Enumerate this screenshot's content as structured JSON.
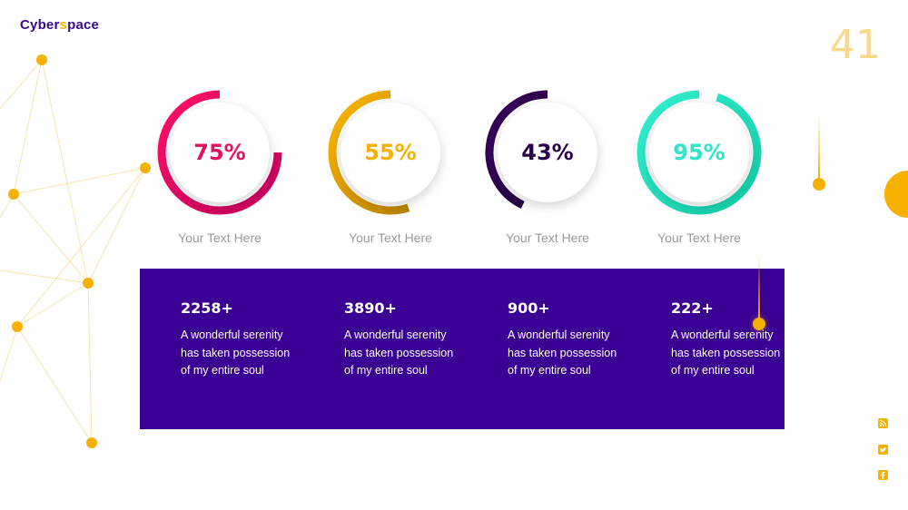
{
  "logo": {
    "part1": "Cyber",
    "part2": "s",
    "part3": "pace"
  },
  "slide_number": "41",
  "gauges": [
    {
      "percent": 75,
      "label": "75%",
      "caption": "Your Text Here",
      "color_start": "#ff1166",
      "color_end": "#c3005c"
    },
    {
      "percent": 55,
      "label": "55%",
      "caption": "Your Text Here",
      "color_start": "#ffb800",
      "color_end": "#b98200"
    },
    {
      "percent": 43,
      "label": "43%",
      "caption": "Your Text Here",
      "color_start": "#3a0060",
      "color_end": "#1f0038"
    },
    {
      "percent": 95,
      "label": "95%",
      "caption": "Your Text Here",
      "color_start": "#33f0d0",
      "color_end": "#12c9a4"
    }
  ],
  "stats": [
    {
      "value": "2258+",
      "description": "A wonderful serenity has taken possession of my entire soul"
    },
    {
      "value": "3890+",
      "description": "A wonderful serenity has taken possession of my entire soul"
    },
    {
      "value": "900+",
      "description": "A wonderful serenity has taken possession of my entire soul"
    },
    {
      "value": "222+",
      "description": "A wonderful serenity has taken possession of my entire soul"
    }
  ],
  "colors": {
    "accent": "#f6b100",
    "panel": "#3a0093",
    "brand": "#3a0a8c"
  },
  "social_icons": [
    "rss-icon",
    "twitter-icon",
    "facebook-icon"
  ]
}
